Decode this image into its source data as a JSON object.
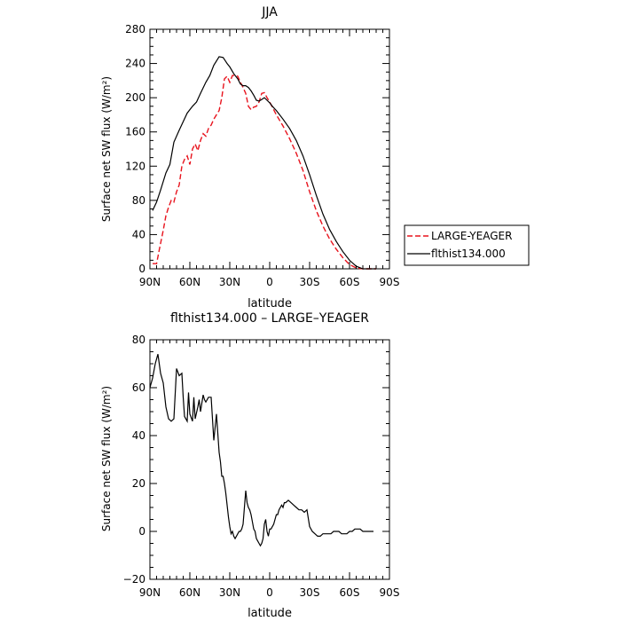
{
  "chart_data": [
    {
      "type": "line",
      "title": "JJA",
      "xlabel": "latitude",
      "ylabel": "Surface net SW flux (W/m²)",
      "xlim": [
        90,
        -90
      ],
      "ylim": [
        0,
        280
      ],
      "x_ticks": [
        90,
        60,
        30,
        0,
        -30,
        -60,
        -90
      ],
      "x_tick_labels": [
        "90N",
        "60N",
        "30N",
        "0",
        "30S",
        "60S",
        "90S"
      ],
      "y_ticks": [
        0,
        40,
        80,
        120,
        160,
        200,
        240,
        280
      ],
      "y_tick_labels": [
        "0",
        "40",
        "80",
        "120",
        "160",
        "200",
        "240",
        "280"
      ],
      "legend": "right",
      "series": [
        {
          "name": "LARGE-YEAGER",
          "color": "#e8131d",
          "dash": "dashed",
          "x": [
            88,
            85,
            83,
            80,
            78,
            76,
            74,
            72,
            70,
            68,
            66,
            64,
            62,
            60,
            58,
            56,
            54,
            52,
            50,
            48,
            46,
            44,
            42,
            40,
            38,
            36,
            34,
            32,
            30,
            28,
            26,
            24,
            22,
            20,
            18,
            16,
            14,
            12,
            10,
            8,
            6,
            4,
            2,
            0,
            -2,
            -5,
            -10,
            -15,
            -20,
            -25,
            -30,
            -35,
            -40,
            -45,
            -50,
            -55,
            -60,
            -65,
            -70,
            -75,
            -80
          ],
          "y": [
            6,
            6,
            22,
            45,
            62,
            72,
            80,
            78,
            90,
            98,
            120,
            128,
            132,
            122,
            140,
            146,
            138,
            150,
            158,
            155,
            164,
            168,
            175,
            180,
            185,
            200,
            222,
            225,
            218,
            226,
            226,
            225,
            218,
            212,
            205,
            190,
            186,
            189,
            190,
            195,
            205,
            206,
            200,
            195,
            189,
            180,
            167,
            152,
            135,
            115,
            90,
            68,
            50,
            35,
            23,
            13,
            5,
            1,
            0,
            0,
            0
          ]
        },
        {
          "name": "flthist134.000",
          "color": "#000000",
          "dash": "solid",
          "x": [
            88,
            85,
            82,
            78,
            75,
            72,
            68,
            65,
            62,
            58,
            55,
            52,
            48,
            45,
            42,
            38,
            35,
            32,
            30,
            27,
            24,
            22,
            20,
            18,
            16,
            14,
            12,
            10,
            8,
            6,
            4,
            2,
            0,
            -2,
            -5,
            -10,
            -15,
            -20,
            -25,
            -30,
            -35,
            -40,
            -45,
            -50,
            -55,
            -60,
            -65,
            -70,
            -75,
            -80
          ],
          "y": [
            68,
            78,
            92,
            112,
            122,
            148,
            162,
            172,
            182,
            190,
            195,
            205,
            218,
            226,
            238,
            248,
            247,
            240,
            236,
            228,
            222,
            216,
            214,
            214,
            212,
            208,
            203,
            197,
            196,
            198,
            200,
            197,
            194,
            190,
            185,
            175,
            164,
            150,
            132,
            110,
            86,
            64,
            46,
            32,
            20,
            10,
            3,
            0,
            0,
            0
          ]
        }
      ]
    },
    {
      "type": "line",
      "title": "flthist134.000 – LARGE–YEAGER",
      "xlabel": "latitude",
      "ylabel": "Surface net SW flux (W/m²)",
      "xlim": [
        90,
        -90
      ],
      "ylim": [
        -20,
        80
      ],
      "x_ticks": [
        90,
        60,
        30,
        0,
        -30,
        -60,
        -90
      ],
      "x_tick_labels": [
        "90N",
        "60N",
        "30N",
        "0",
        "30S",
        "60S",
        "90S"
      ],
      "y_ticks": [
        -20,
        0,
        20,
        40,
        60,
        80
      ],
      "y_tick_labels": [
        "−20",
        "0",
        "20",
        "40",
        "60",
        "80"
      ],
      "series": [
        {
          "color": "#000000",
          "dash": "solid",
          "x": [
            90,
            88,
            86,
            84,
            82,
            80,
            78,
            76,
            74,
            72,
            70,
            68,
            66,
            65,
            64,
            62,
            61,
            60,
            58,
            57,
            56,
            54,
            53,
            52,
            50,
            49,
            48,
            46,
            45,
            44,
            42,
            40,
            38,
            37,
            36,
            35,
            34,
            33,
            32,
            31,
            30,
            29,
            28,
            27,
            26,
            25,
            24,
            23,
            22,
            21,
            20,
            18,
            17,
            16,
            15,
            14,
            13,
            12,
            11,
            10,
            9,
            8,
            7,
            6,
            5,
            4,
            3,
            2,
            1,
            0,
            -1,
            -2,
            -3,
            -4,
            -5,
            -6,
            -7,
            -8,
            -9,
            -10,
            -11,
            -12,
            -14,
            -16,
            -18,
            -20,
            -22,
            -24,
            -26,
            -28,
            -30,
            -32,
            -34,
            -36,
            -38,
            -40,
            -42,
            -44,
            -46,
            -48,
            -50,
            -52,
            -54,
            -56,
            -58,
            -60,
            -62,
            -64,
            -66,
            -68,
            -70,
            -72,
            -74,
            -76,
            -78
          ],
          "y": [
            60,
            64,
            70,
            74,
            66,
            62,
            52,
            47,
            46,
            47,
            68,
            65,
            66,
            56,
            48,
            46,
            58,
            49,
            46,
            56,
            47,
            52,
            55,
            50,
            57,
            55,
            54,
            56,
            56,
            56,
            38,
            49,
            33,
            29,
            23,
            23,
            20,
            16,
            11,
            6,
            2,
            -1,
            0,
            -2,
            -3,
            -2,
            -1,
            0,
            0,
            1,
            3,
            17,
            12,
            10,
            9,
            7,
            4,
            1,
            0,
            -3,
            -4,
            -5,
            -6,
            -5,
            -3,
            3,
            5,
            0,
            -2,
            1,
            1,
            2,
            3,
            5,
            7,
            7,
            9,
            10,
            11,
            10,
            12,
            12,
            13,
            12,
            11,
            10,
            9,
            9,
            8,
            9,
            2,
            0,
            -1,
            -2,
            -2,
            -1,
            -1,
            -1,
            -1,
            0,
            0,
            0,
            -1,
            -1,
            -1,
            0,
            0,
            1,
            1,
            1,
            0,
            0,
            0,
            0,
            0
          ]
        }
      ]
    }
  ]
}
